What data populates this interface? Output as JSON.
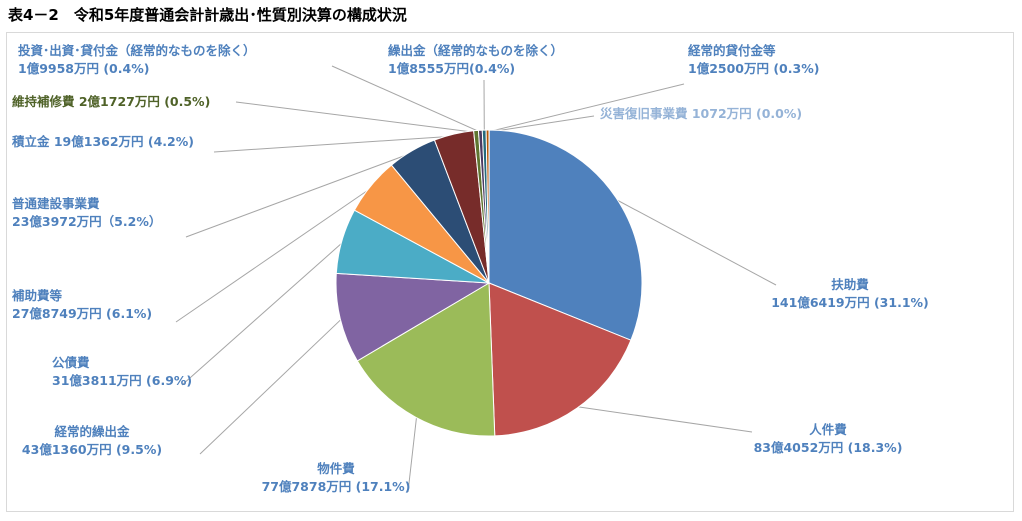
{
  "title": "表4－2　令和5年度普通会計計歳出･性質別決算の構成状況",
  "chart_data": {
    "type": "pie",
    "title": "表4－2　令和5年度普通会計計歳出･性質別決算の構成状況",
    "legend": "none",
    "slices": [
      {
        "name": "扶助費",
        "value_label": "141億6419万円 (31.1%)",
        "percent": 31.1,
        "color": "#4F81BD"
      },
      {
        "name": "人件費",
        "value_label": "83億4052万円 (18.3%)",
        "percent": 18.3,
        "color": "#C0504D"
      },
      {
        "name": "物件費",
        "value_label": "77億7878万円 (17.1%)",
        "percent": 17.1,
        "color": "#9BBB59"
      },
      {
        "name": "経常的繰出金",
        "value_label": "43億1360万円 (9.5%)",
        "percent": 9.5,
        "color": "#8064A2"
      },
      {
        "name": "公債費",
        "value_label": "31億3811万円 (6.9%)",
        "percent": 6.9,
        "color": "#4BACC6"
      },
      {
        "name": "補助費等",
        "value_label": "27億8749万円 (6.1%)",
        "percent": 6.1,
        "color": "#F79646"
      },
      {
        "name": "普通建設事業費",
        "value_label": "23億3972万円（5.2%）",
        "percent": 5.2,
        "color": "#2C4D75"
      },
      {
        "name": "積立金",
        "value_label": "19億1362万円 (4.2%)",
        "percent": 4.2,
        "color": "#772C2A"
      },
      {
        "name": "維持補修費",
        "value_label": "2億1727万円 (0.5%)",
        "percent": 0.5,
        "color": "#5F7530"
      },
      {
        "name": "投資･出資･貸付金（経常的なものを除く）",
        "value_label": "1億9958万円 (0.4%)",
        "percent": 0.4,
        "color": "#4D3B62"
      },
      {
        "name": "繰出金（経常的なものを除く）",
        "value_label": "1億8555万円(0.4%)",
        "percent": 0.4,
        "color": "#276A7C"
      },
      {
        "name": "経常的貸付金等",
        "value_label": "1億2500万円 (0.3%)",
        "percent": 0.3,
        "color": "#B65708"
      },
      {
        "name": "災害復旧事業費",
        "value_label": "1072万円 (0.0%)",
        "percent": 0.0,
        "color": "#729ACA"
      }
    ]
  }
}
